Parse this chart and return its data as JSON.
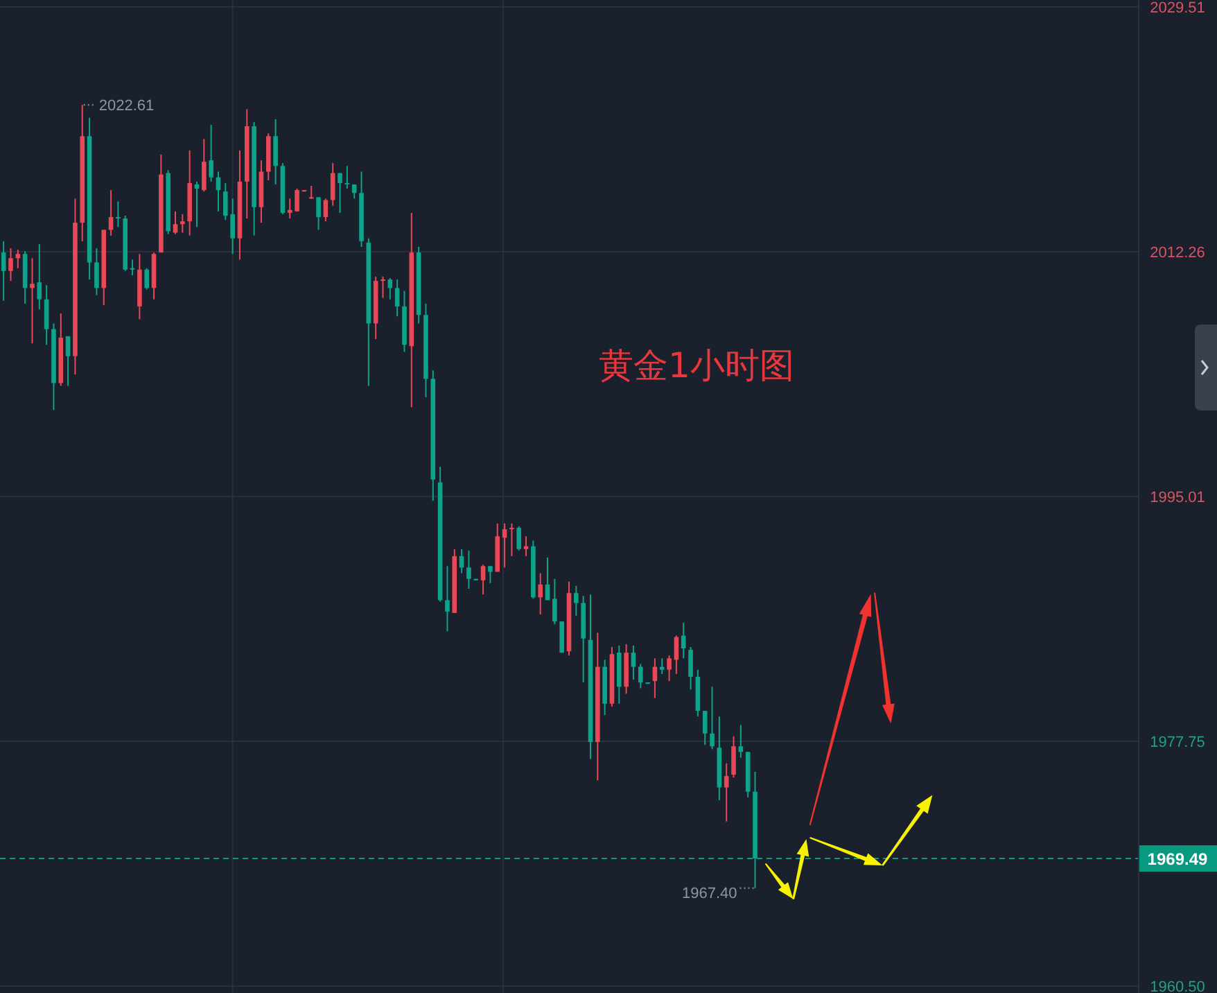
{
  "chart_data": {
    "type": "candlestick",
    "title": "黄金1小时图",
    "categories": [
      null,
      null,
      null,
      null,
      null,
      null,
      null,
      null,
      null,
      null,
      null,
      null,
      null,
      null,
      null,
      null,
      null,
      null,
      null,
      null,
      null,
      null,
      null,
      null,
      null,
      null,
      null,
      null,
      null,
      null,
      null,
      null,
      null,
      null,
      null,
      null,
      null,
      null,
      null,
      null,
      null,
      null,
      null,
      null,
      null,
      null,
      null,
      null,
      null,
      null,
      null,
      null,
      null,
      null,
      null,
      null,
      null,
      null,
      null,
      null,
      null,
      null,
      null,
      null,
      null,
      null,
      null,
      null,
      null,
      null,
      null,
      null,
      null,
      null,
      null,
      null,
      null,
      null,
      null,
      null,
      null,
      null,
      null,
      null,
      null,
      null,
      null,
      null,
      null,
      null,
      null,
      null,
      null,
      null,
      null,
      null,
      null,
      null,
      null,
      null,
      null,
      null,
      null,
      null,
      null,
      null,
      null,
      null,
      null,
      null,
      null,
      null,
      null,
      null,
      null,
      null,
      null,
      null,
      null,
      null,
      null,
      null,
      null,
      null,
      null,
      null,
      null,
      null,
      null,
      null,
      null,
      null,
      null,
      null,
      null,
      null,
      null,
      null,
      null,
      null,
      null,
      null,
      null,
      null,
      null,
      null,
      null,
      null,
      null,
      null,
      null,
      null,
      null,
      null,
      null,
      null,
      null,
      null,
      null
    ],
    "ohlc": [
      [
        2012.2,
        2013.0,
        2008.8,
        2010.9
      ],
      [
        2010.9,
        2012.5,
        2010.2,
        2011.8
      ],
      [
        2011.8,
        2012.4,
        2011.1,
        2012.1
      ],
      [
        2012.1,
        2012.3,
        2008.6,
        2009.7
      ],
      [
        2009.7,
        2011.8,
        2005.8,
        2010.0
      ],
      [
        2010.1,
        2012.8,
        2008.2,
        2008.9
      ],
      [
        2008.9,
        2009.9,
        2005.7,
        2006.8
      ],
      [
        2006.8,
        2007.2,
        2001.1,
        2003.0
      ],
      [
        2003.0,
        2007.9,
        2002.8,
        2006.2
      ],
      [
        2006.3,
        2006.3,
        2002.8,
        2004.9
      ],
      [
        2004.9,
        2016.0,
        2003.6,
        2014.3
      ],
      [
        2014.3,
        2022.61,
        2013.0,
        2020.4
      ],
      [
        2020.4,
        2021.7,
        2010.3,
        2011.5
      ],
      [
        2011.5,
        2012.5,
        2009.2,
        2009.7
      ],
      [
        2009.7,
        2013.8,
        2008.5,
        2013.8
      ],
      [
        2013.8,
        2016.6,
        2013.4,
        2014.7
      ],
      [
        2014.7,
        2015.8,
        2014.0,
        2014.6
      ],
      [
        2014.6,
        2014.8,
        2010.9,
        2011.0
      ],
      [
        2011.1,
        2011.7,
        2010.6,
        2011.0
      ],
      [
        2008.4,
        2012.1,
        2007.5,
        2011.0
      ],
      [
        2011.0,
        2011.1,
        2009.6,
        2009.7
      ],
      [
        2009.7,
        2012.2,
        2008.9,
        2012.1
      ],
      [
        2012.2,
        2019.1,
        2012.2,
        2017.7
      ],
      [
        2017.8,
        2018.0,
        2013.5,
        2013.7
      ],
      [
        2013.6,
        2015.1,
        2013.5,
        2014.2
      ],
      [
        2014.2,
        2014.9,
        2013.6,
        2014.4
      ],
      [
        2014.4,
        2019.4,
        2013.4,
        2017.1
      ],
      [
        2017.0,
        2017.2,
        2014.0,
        2016.7
      ],
      [
        2016.6,
        2020.2,
        2016.5,
        2018.6
      ],
      [
        2018.7,
        2021.2,
        2017.2,
        2017.5
      ],
      [
        2017.5,
        2017.9,
        2015.1,
        2016.6
      ],
      [
        2016.5,
        2017.1,
        2014.5,
        2014.8
      ],
      [
        2014.9,
        2016.0,
        2012.1,
        2013.2
      ],
      [
        2013.2,
        2019.4,
        2011.7,
        2017.2
      ],
      [
        2017.2,
        2022.3,
        2014.6,
        2021.1
      ],
      [
        2021.1,
        2021.4,
        2013.4,
        2015.4
      ],
      [
        2015.4,
        2018.7,
        2014.3,
        2017.9
      ],
      [
        2017.9,
        2020.6,
        2017.3,
        2020.4
      ],
      [
        2020.4,
        2021.6,
        2017.0,
        2018.3
      ],
      [
        2018.3,
        2018.5,
        2014.9,
        2015.0
      ],
      [
        2015.0,
        2016.0,
        2014.6,
        2015.2
      ],
      [
        2015.1,
        2016.7,
        2015.1,
        2016.6
      ],
      [
        2016.5,
        2016.6,
        2016.5,
        2016.6
      ],
      [
        2016.0,
        2016.9,
        2016.0,
        2016.1
      ],
      [
        2016.1,
        2016.1,
        2013.8,
        2014.7
      ],
      [
        2014.7,
        2016.0,
        2014.4,
        2015.9
      ],
      [
        2015.9,
        2018.5,
        2015.5,
        2017.8
      ],
      [
        2017.8,
        2017.8,
        2015.0,
        2017.1
      ],
      [
        2017.1,
        2018.3,
        2016.7,
        2017.1
      ],
      [
        2017.0,
        2017.0,
        2016.0,
        2016.4
      ],
      [
        2016.4,
        2017.9,
        2012.6,
        2013.0
      ],
      [
        2012.9,
        2013.2,
        2002.8,
        2007.2
      ],
      [
        2007.2,
        2010.5,
        2006.1,
        2010.2
      ],
      [
        2010.2,
        2010.5,
        2009.0,
        2010.3
      ],
      [
        2010.3,
        2010.4,
        2008.9,
        2009.7
      ],
      [
        2009.7,
        2010.3,
        2007.7,
        2008.4
      ],
      [
        2008.4,
        2009.5,
        2005.2,
        2005.7
      ],
      [
        2005.6,
        2015.0,
        2001.3,
        2012.2
      ],
      [
        2012.2,
        2012.6,
        2007.2,
        2007.8
      ],
      [
        2007.8,
        2008.6,
        2002.0,
        2003.3
      ],
      [
        2003.3,
        2003.9,
        1994.7,
        1996.2
      ],
      [
        1996.0,
        1997.1,
        1987.6,
        1987.7
      ],
      [
        1987.7,
        1990.1,
        1985.5,
        1986.9
      ],
      [
        1986.8,
        1991.3,
        1986.8,
        1990.8
      ],
      [
        1990.8,
        1991.3,
        1989.6,
        1990.0
      ],
      [
        1990.0,
        1991.2,
        1988.5,
        1989.2
      ],
      [
        1989.2,
        1989.2,
        1989.1,
        1989.1
      ],
      [
        1989.1,
        1990.2,
        1988.1,
        1990.1
      ],
      [
        1990.1,
        1990.1,
        1988.9,
        1989.7
      ],
      [
        1989.7,
        1993.1,
        1989.7,
        1992.2
      ],
      [
        1992.1,
        1993.1,
        1990.0,
        1992.7
      ],
      [
        1992.7,
        1993.1,
        1990.8,
        1992.8
      ],
      [
        1992.8,
        1992.9,
        1991.2,
        1991.3
      ],
      [
        1991.3,
        1992.2,
        1990.8,
        1991.5
      ],
      [
        1991.5,
        1991.9,
        1987.8,
        1987.9
      ],
      [
        1987.9,
        1989.6,
        1986.7,
        1988.8
      ],
      [
        1988.8,
        1990.7,
        1987.7,
        1987.7
      ],
      [
        1987.8,
        1989.2,
        1986.0,
        1986.2
      ],
      [
        1986.2,
        1986.2,
        1984.0,
        1984.0
      ],
      [
        1984.1,
        1989.0,
        1983.8,
        1988.2
      ],
      [
        1988.2,
        1988.7,
        1986.6,
        1987.5
      ],
      [
        1987.5,
        1988.0,
        1981.9,
        1985.0
      ],
      [
        1984.9,
        1988.1,
        1976.5,
        1977.7
      ],
      [
        1977.7,
        1985.4,
        1975.0,
        1983.0
      ],
      [
        1983.0,
        1983.5,
        1979.6,
        1980.4
      ],
      [
        1980.4,
        1984.4,
        1980.2,
        1983.9
      ],
      [
        1984.0,
        1984.5,
        1980.4,
        1981.6
      ],
      [
        1981.6,
        1984.6,
        1981.1,
        1984.0
      ],
      [
        1984.0,
        1984.5,
        1982.1,
        1983.0
      ],
      [
        1983.0,
        1983.2,
        1981.5,
        1981.9
      ],
      [
        1981.9,
        1981.9,
        1981.8,
        1981.8
      ],
      [
        1982.0,
        1983.6,
        1980.8,
        1983.0
      ],
      [
        1983.0,
        1983.6,
        1982.5,
        1982.8
      ],
      [
        1982.8,
        1983.8,
        1982.0,
        1983.6
      ],
      [
        1983.5,
        1985.2,
        1982.5,
        1985.1
      ],
      [
        1985.2,
        1986.1,
        1983.6,
        1984.3
      ],
      [
        1984.2,
        1984.4,
        1981.4,
        1982.3
      ],
      [
        1982.3,
        1982.8,
        1979.5,
        1979.9
      ],
      [
        1979.9,
        1979.9,
        1977.5,
        1978.3
      ],
      [
        1978.3,
        1981.6,
        1977.2,
        1977.4
      ],
      [
        1977.3,
        1979.5,
        1973.6,
        1974.5
      ],
      [
        1974.5,
        1976.2,
        1972.1,
        1975.3
      ],
      [
        1975.4,
        1978.1,
        1975.2,
        1977.4
      ],
      [
        1977.4,
        1978.9,
        1976.6,
        1977.0
      ],
      [
        1977.0,
        1977.0,
        1973.8,
        1974.2
      ],
      [
        1974.2,
        1975.6,
        1967.4,
        1969.49
      ],
      null,
      null,
      null,
      null,
      null,
      null,
      null,
      null,
      null,
      null,
      null,
      null,
      null,
      null,
      null,
      null,
      null,
      null,
      null,
      null,
      null,
      null,
      null,
      null,
      null,
      null,
      null,
      null,
      null,
      null,
      null,
      null,
      null,
      null,
      null,
      null,
      null,
      null,
      null,
      null,
      null,
      null,
      null,
      null,
      null,
      null,
      null,
      null,
      null,
      null,
      null,
      null,
      null
    ],
    "colors": [
      "#0ea38b",
      "#e84857",
      "#e84857",
      "#0ea38b",
      "#e84857",
      "#0ea38b",
      "#0ea38b",
      "#0ea38b",
      "#e84857",
      "#0ea38b",
      "#e84857",
      "#e84857",
      "#0ea38b",
      "#0ea38b",
      "#e84857",
      "#e84857",
      "#0ea38b",
      "#0ea38b",
      "#0ea38b",
      "#e84857",
      "#0ea38b",
      "#e84857",
      "#e84857",
      "#0ea38b",
      "#e84857",
      "#e84857",
      "#e84857",
      "#0ea38b",
      "#e84857",
      "#0ea38b",
      "#0ea38b",
      "#0ea38b",
      "#0ea38b",
      "#e84857",
      "#e84857",
      "#0ea38b",
      "#e84857",
      "#e84857",
      "#0ea38b",
      "#0ea38b",
      "#e84857",
      "#e84857",
      "#e84857",
      "#e84857",
      "#0ea38b",
      "#e84857",
      "#e84857",
      "#0ea38b",
      "#0ea38b",
      "#0ea38b",
      "#0ea38b",
      "#0ea38b",
      "#e84857",
      "#e84857",
      "#0ea38b",
      "#0ea38b",
      "#0ea38b",
      "#e84857",
      "#0ea38b",
      "#0ea38b",
      "#0ea38b",
      "#0ea38b",
      "#0ea38b",
      "#e84857",
      "#0ea38b",
      "#0ea38b",
      "#0ea38b",
      "#e84857",
      "#0ea38b",
      "#e84857",
      "#e84857",
      "#e84857",
      "#0ea38b",
      "#e84857",
      "#0ea38b",
      "#e84857",
      "#0ea38b",
      "#0ea38b",
      "#0ea38b",
      "#e84857",
      "#0ea38b",
      "#0ea38b",
      "#0ea38b",
      "#e84857",
      "#0ea38b",
      "#e84857",
      "#0ea38b",
      "#e84857",
      "#0ea38b",
      "#0ea38b",
      "#0ea38b",
      "#e84857",
      "#0ea38b",
      "#e84857",
      "#e84857",
      "#0ea38b",
      "#0ea38b",
      "#0ea38b",
      "#0ea38b",
      "#0ea38b",
      "#0ea38b",
      "#e84857",
      "#e84857",
      "#0ea38b",
      "#0ea38b",
      "#0ea38b",
      null,
      null,
      null,
      null,
      null,
      null,
      null,
      null,
      null,
      null,
      null,
      null,
      null,
      null,
      null,
      null,
      null,
      null,
      null,
      null,
      null,
      null,
      null,
      null,
      null,
      null,
      null,
      null,
      null,
      null,
      null,
      null,
      null,
      null,
      null,
      null,
      null,
      null,
      null,
      null,
      null,
      null,
      null,
      null,
      null,
      null,
      null,
      null,
      null,
      null,
      null,
      null,
      null
    ],
    "ylim": [
      1960.5,
      2029.51
    ],
    "yticks": [
      {
        "value": 1960.5,
        "label": "1960.50"
      },
      1977.75,
      1995.01,
      2012.26,
      2029.51
    ],
    "grid": true,
    "tick_labels": "y",
    "ref_lines": [
      {
        "axis": "y",
        "value": 1969.49,
        "label": "1969.49",
        "color": "#089981",
        "line_style": "dashed"
      }
    ],
    "annotations": [
      "2022.61",
      "1967.40"
    ]
  }
}
